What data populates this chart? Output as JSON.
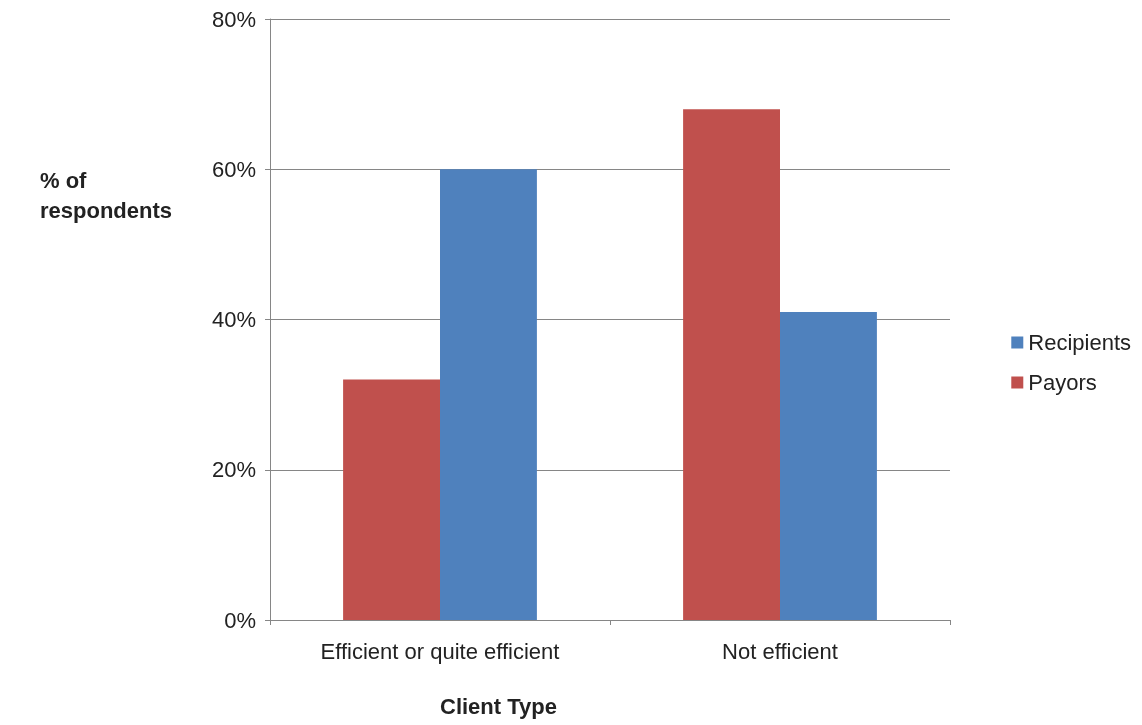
{
  "chart_data": {
    "type": "bar",
    "xlabel": "Client Type",
    "ylabel": "% of respondents",
    "categories": [
      "Efficient or quite efficient",
      "Not efficient"
    ],
    "series": [
      {
        "name": "Payors",
        "color": "#c0504d",
        "values": [
          32,
          68
        ]
      },
      {
        "name": "Recipients",
        "color": "#4f81bd",
        "values": [
          60,
          41
        ]
      }
    ],
    "ylim": [
      0,
      80
    ],
    "yticks": [
      {
        "value": 0,
        "label": "0%"
      },
      {
        "value": 20,
        "label": "20%"
      },
      {
        "value": 40,
        "label": "40%"
      },
      {
        "value": 60,
        "label": "60%"
      },
      {
        "value": 80,
        "label": "80%"
      }
    ],
    "grid": "y",
    "legend": "right"
  }
}
